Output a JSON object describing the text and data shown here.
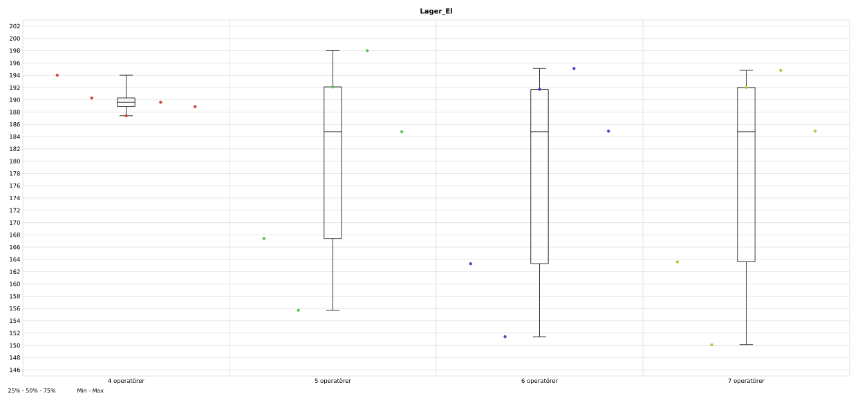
{
  "chart_data": {
    "type": "box",
    "title": "Lager_El",
    "categories": [
      "4 operatörer",
      "5 operatörer",
      "6 operatörer",
      "7 operatörer"
    ],
    "boxes": [
      {
        "low": 187.4,
        "q1": 188.9,
        "median": 189.6,
        "q3": 190.3,
        "high": 194.0
      },
      {
        "low": 155.7,
        "q1": 167.4,
        "median": 184.8,
        "q3": 192.1,
        "high": 198.0
      },
      {
        "low": 151.4,
        "q1": 163.3,
        "median": 184.8,
        "q3": 191.7,
        "high": 195.1
      },
      {
        "low": 150.1,
        "q1": 163.6,
        "median": 184.8,
        "q3": 192.0,
        "high": 194.8
      }
    ],
    "series": [
      {
        "type": "scatter",
        "x": [
          "4 operatörer",
          "4 operatörer",
          "4 operatörer",
          "4 operatörer",
          "4 operatörer"
        ],
        "values": [
          194.0,
          190.3,
          187.4,
          189.6,
          188.9
        ],
        "color": "#c8423c"
      },
      {
        "type": "scatter",
        "x": [
          "5 operatörer",
          "5 operatörer",
          "5 operatörer",
          "5 operatörer",
          "5 operatörer"
        ],
        "values": [
          167.4,
          155.7,
          192.1,
          198.0,
          184.8
        ],
        "color": "#4cc84c"
      },
      {
        "type": "scatter",
        "x": [
          "6 operatörer",
          "6 operatörer",
          "6 operatörer",
          "6 operatörer",
          "6 operatörer"
        ],
        "values": [
          163.3,
          151.4,
          191.7,
          195.1,
          184.9
        ],
        "color": "#4a3cc8"
      },
      {
        "type": "scatter",
        "x": [
          "7 operatörer",
          "7 operatörer",
          "7 operatörer",
          "7 operatörer",
          "7 operatörer"
        ],
        "values": [
          163.6,
          150.1,
          192.0,
          194.8,
          184.9
        ],
        "color": "#b4c83c"
      }
    ],
    "ylim": [
      145,
      203
    ],
    "yticks": [
      146,
      148,
      150,
      152,
      154,
      156,
      158,
      160,
      162,
      164,
      166,
      168,
      170,
      172,
      174,
      176,
      178,
      180,
      182,
      184,
      186,
      188,
      190,
      192,
      194,
      196,
      198,
      200,
      202
    ],
    "grid": true,
    "marker": "circle",
    "annotations": [
      "25% - 50% - 75%",
      "Min - Max"
    ]
  }
}
